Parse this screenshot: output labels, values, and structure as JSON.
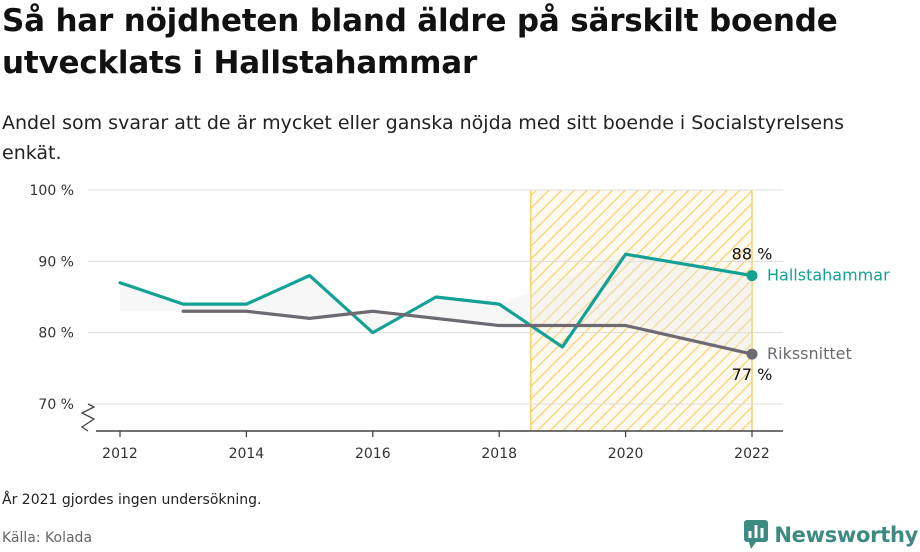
{
  "title": "Så har nöjdheten bland äldre på särskilt boende utvecklats i Hallstahammar",
  "subtitle": "Andel som svarar att de är mycket eller ganska nöjda med sitt boende i Socialstyrelsens enkät.",
  "note": "År 2021 gjordes ingen undersökning.",
  "source": "Källa: Kolada",
  "brand": "Newsworthy",
  "colors": {
    "hallstahammar": "#13a196",
    "riket": "#6d6a72",
    "highlight": "#f7cf6a",
    "grid": "#dddddd"
  },
  "chart_data": {
    "type": "line",
    "ylim": [
      70,
      100
    ],
    "yticks": [
      {
        "value": 100,
        "label": "100 %"
      },
      {
        "value": 90,
        "label": "90 %"
      },
      {
        "value": 80,
        "label": "80 %"
      },
      {
        "value": 70,
        "label": "70 %"
      }
    ],
    "xticks": [
      {
        "value": 2012,
        "label": "2012"
      },
      {
        "value": 2014,
        "label": "2014"
      },
      {
        "value": 2016,
        "label": "2016"
      },
      {
        "value": 2018,
        "label": "2018"
      },
      {
        "value": 2020,
        "label": "2020"
      },
      {
        "value": 2022,
        "label": "2022"
      }
    ],
    "xlim": [
      2011.5,
      2022.5
    ],
    "highlight_range": [
      2018.5,
      2022
    ],
    "series": [
      {
        "name": "Hallstahammar",
        "color": "#13a196",
        "x": [
          2012,
          2013,
          2014,
          2015,
          2016,
          2017,
          2018,
          2019,
          2020,
          2022
        ],
        "y": [
          87,
          84,
          84,
          88,
          80,
          85,
          84,
          78,
          91,
          88
        ],
        "end_label": "88 %"
      },
      {
        "name": "Rikssnittet",
        "color": "#6d6a72",
        "x": [
          2013,
          2014,
          2015,
          2016,
          2017,
          2018,
          2020,
          2022
        ],
        "y": [
          83,
          83,
          82,
          83,
          82,
          81,
          81,
          77
        ],
        "end_label": "77 %"
      }
    ]
  }
}
